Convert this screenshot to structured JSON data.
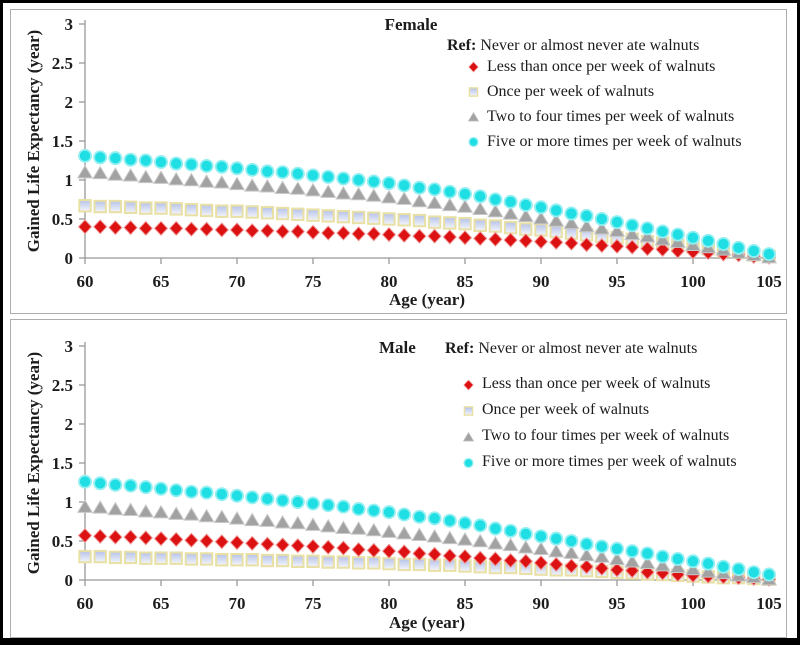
{
  "figure": {
    "border_color": "#000000",
    "background": "#ffffff"
  },
  "colors": {
    "red": "#dc1212",
    "red_edge": "#f19a9a",
    "gray": "#a2a2a2",
    "gray_edge": "#c8c8c8",
    "cyan": "#1fdfe4",
    "cyan_edge": "#93eff1",
    "square_border": "#e8e0a4",
    "square_fill_top": "#b5c1e8",
    "square_fill_bottom": "#f4f6fc",
    "axis": "#999999",
    "panel_border": "#adadad",
    "text": "#1c1c1c"
  },
  "chart_data": [
    {
      "type": "scatter",
      "title": "Female",
      "xlabel": "Age (year)",
      "ylabel": "Gained Life Expectancy (year)",
      "xlim": [
        60,
        105
      ],
      "ylim": [
        0,
        3
      ],
      "x_ticks": [
        60,
        65,
        70,
        75,
        80,
        85,
        90,
        95,
        100,
        105
      ],
      "y_ticks": [
        0,
        0.5,
        1,
        1.5,
        2,
        2.5,
        3
      ],
      "grid": false,
      "legend": {
        "position": "top-right",
        "ref_bold": "Ref:",
        "ref_text": "Never or almost never ate walnuts"
      },
      "ages": [
        60,
        61,
        62,
        63,
        64,
        65,
        66,
        67,
        68,
        69,
        70,
        71,
        72,
        73,
        74,
        75,
        76,
        77,
        78,
        79,
        80,
        81,
        82,
        83,
        84,
        85,
        86,
        87,
        88,
        89,
        90,
        91,
        92,
        93,
        94,
        95,
        96,
        97,
        98,
        99,
        100,
        101,
        102,
        103,
        104,
        105
      ],
      "series": [
        {
          "name": "Less than once per week of walnuts",
          "marker": "diamond",
          "draw_order": 1,
          "values": [
            0.4,
            0.4,
            0.39,
            0.39,
            0.38,
            0.38,
            0.38,
            0.37,
            0.37,
            0.36,
            0.36,
            0.35,
            0.35,
            0.34,
            0.34,
            0.33,
            0.32,
            0.32,
            0.31,
            0.31,
            0.3,
            0.29,
            0.28,
            0.28,
            0.27,
            0.26,
            0.25,
            0.24,
            0.23,
            0.22,
            0.21,
            0.2,
            0.19,
            0.17,
            0.16,
            0.15,
            0.14,
            0.12,
            0.11,
            0.09,
            0.08,
            0.07,
            0.05,
            0.04,
            0.02,
            0.01
          ]
        },
        {
          "name": "Once per week of walnuts",
          "marker": "square",
          "draw_order": 0,
          "values": [
            0.67,
            0.66,
            0.66,
            0.65,
            0.64,
            0.64,
            0.63,
            0.62,
            0.61,
            0.6,
            0.6,
            0.59,
            0.58,
            0.57,
            0.56,
            0.55,
            0.54,
            0.53,
            0.52,
            0.51,
            0.5,
            0.49,
            0.48,
            0.46,
            0.45,
            0.44,
            0.42,
            0.41,
            0.39,
            0.37,
            0.36,
            0.34,
            0.32,
            0.3,
            0.28,
            0.26,
            0.24,
            0.21,
            0.19,
            0.16,
            0.14,
            0.12,
            0.09,
            0.07,
            0.04,
            0.02
          ]
        },
        {
          "name": "Two to four times per week of walnuts",
          "marker": "triangle",
          "draw_order": 2,
          "values": [
            1.1,
            1.09,
            1.07,
            1.06,
            1.04,
            1.03,
            1.01,
            1.0,
            0.98,
            0.97,
            0.95,
            0.93,
            0.92,
            0.9,
            0.89,
            0.87,
            0.85,
            0.83,
            0.82,
            0.8,
            0.78,
            0.76,
            0.73,
            0.71,
            0.68,
            0.66,
            0.63,
            0.6,
            0.57,
            0.54,
            0.51,
            0.48,
            0.45,
            0.41,
            0.38,
            0.35,
            0.31,
            0.28,
            0.24,
            0.21,
            0.17,
            0.14,
            0.11,
            0.07,
            0.04,
            0.01
          ]
        },
        {
          "name": "Five or more times per week of walnuts",
          "marker": "circle",
          "draw_order": 3,
          "values": [
            1.31,
            1.29,
            1.28,
            1.26,
            1.25,
            1.23,
            1.21,
            1.2,
            1.18,
            1.17,
            1.15,
            1.13,
            1.11,
            1.1,
            1.08,
            1.06,
            1.04,
            1.02,
            1.0,
            0.98,
            0.96,
            0.93,
            0.9,
            0.88,
            0.85,
            0.82,
            0.79,
            0.75,
            0.72,
            0.68,
            0.65,
            0.61,
            0.57,
            0.54,
            0.5,
            0.46,
            0.42,
            0.38,
            0.34,
            0.3,
            0.26,
            0.22,
            0.18,
            0.13,
            0.09,
            0.05
          ]
        }
      ]
    },
    {
      "type": "scatter",
      "title": "Male",
      "xlabel": "Age (year)",
      "ylabel": "Gained Life Expectancy (year)",
      "xlim": [
        60,
        105
      ],
      "ylim": [
        0,
        3
      ],
      "x_ticks": [
        60,
        65,
        70,
        75,
        80,
        85,
        90,
        95,
        100,
        105
      ],
      "y_ticks": [
        0,
        0.5,
        1,
        1.5,
        2,
        2.5,
        3
      ],
      "grid": false,
      "legend": {
        "position": "top-right",
        "ref_bold": "Ref:",
        "ref_text": "Never or almost never ate walnuts"
      },
      "ages": [
        60,
        61,
        62,
        63,
        64,
        65,
        66,
        67,
        68,
        69,
        70,
        71,
        72,
        73,
        74,
        75,
        76,
        77,
        78,
        79,
        80,
        81,
        82,
        83,
        84,
        85,
        86,
        87,
        88,
        89,
        90,
        91,
        92,
        93,
        94,
        95,
        96,
        97,
        98,
        99,
        100,
        101,
        102,
        103,
        104,
        105
      ],
      "series": [
        {
          "name": "Less than once per week of walnuts",
          "marker": "diamond",
          "draw_order": 1,
          "values": [
            0.57,
            0.56,
            0.55,
            0.55,
            0.54,
            0.53,
            0.52,
            0.51,
            0.5,
            0.49,
            0.48,
            0.47,
            0.46,
            0.45,
            0.44,
            0.43,
            0.42,
            0.41,
            0.39,
            0.38,
            0.37,
            0.36,
            0.34,
            0.33,
            0.31,
            0.3,
            0.28,
            0.27,
            0.25,
            0.24,
            0.22,
            0.2,
            0.18,
            0.17,
            0.15,
            0.13,
            0.12,
            0.1,
            0.09,
            0.07,
            0.06,
            0.05,
            0.04,
            0.03,
            0.02,
            0.01
          ]
        },
        {
          "name": "Once per week of walnuts",
          "marker": "square",
          "draw_order": 0,
          "values": [
            0.3,
            0.3,
            0.29,
            0.29,
            0.28,
            0.28,
            0.28,
            0.27,
            0.27,
            0.26,
            0.26,
            0.26,
            0.25,
            0.25,
            0.24,
            0.24,
            0.23,
            0.23,
            0.22,
            0.22,
            0.21,
            0.2,
            0.2,
            0.19,
            0.19,
            0.18,
            0.17,
            0.16,
            0.16,
            0.15,
            0.14,
            0.13,
            0.13,
            0.12,
            0.11,
            0.1,
            0.09,
            0.08,
            0.07,
            0.06,
            0.05,
            0.04,
            0.03,
            0.03,
            0.02,
            0.01
          ]
        },
        {
          "name": "Two to four times per week of walnuts",
          "marker": "triangle",
          "draw_order": 2,
          "values": [
            0.94,
            0.93,
            0.91,
            0.9,
            0.88,
            0.87,
            0.85,
            0.84,
            0.82,
            0.81,
            0.79,
            0.77,
            0.76,
            0.74,
            0.73,
            0.71,
            0.69,
            0.67,
            0.66,
            0.64,
            0.62,
            0.6,
            0.58,
            0.56,
            0.54,
            0.52,
            0.5,
            0.47,
            0.45,
            0.42,
            0.4,
            0.37,
            0.35,
            0.32,
            0.3,
            0.27,
            0.24,
            0.22,
            0.19,
            0.17,
            0.14,
            0.11,
            0.09,
            0.06,
            0.04,
            0.01
          ]
        },
        {
          "name": "Five or more times per week of walnuts",
          "marker": "circle",
          "draw_order": 3,
          "values": [
            1.26,
            1.24,
            1.22,
            1.21,
            1.19,
            1.17,
            1.15,
            1.13,
            1.12,
            1.1,
            1.08,
            1.06,
            1.04,
            1.02,
            1.0,
            0.98,
            0.96,
            0.94,
            0.91,
            0.89,
            0.87,
            0.84,
            0.81,
            0.79,
            0.76,
            0.73,
            0.7,
            0.66,
            0.63,
            0.59,
            0.56,
            0.53,
            0.5,
            0.46,
            0.43,
            0.4,
            0.37,
            0.34,
            0.3,
            0.27,
            0.24,
            0.21,
            0.17,
            0.14,
            0.1,
            0.07
          ]
        }
      ]
    }
  ]
}
